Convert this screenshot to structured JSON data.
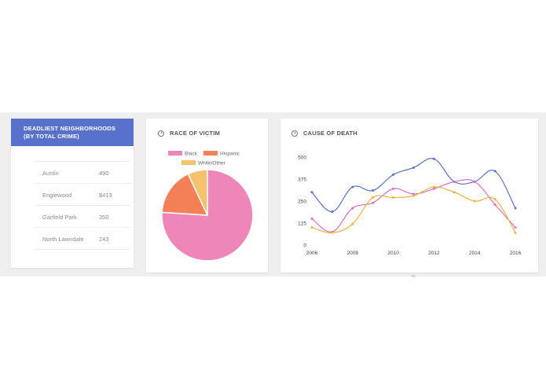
{
  "neighborhoods": {
    "title": "DEADLIEST NEIGHBORHOODS (BY TOTAL CRIME)",
    "rows": [
      {
        "name": "Austin",
        "value": "490"
      },
      {
        "name": "Englewood",
        "value": "$413"
      },
      {
        "name": "Garfield Park",
        "value": "350"
      },
      {
        "name": "North Lawndale",
        "value": "243"
      }
    ]
  },
  "race": {
    "title": "RACE OF VICTIM",
    "icon": "clock-icon",
    "chart_data": {
      "type": "pie",
      "categories": [
        "Black",
        "Hispanic",
        "White/Other"
      ],
      "values": [
        76,
        17,
        7
      ],
      "colors": [
        "#ef86b8",
        "#f38057",
        "#f7c26e"
      ],
      "legend": "top"
    }
  },
  "cause": {
    "title": "CAUSE OF DEATH",
    "icon": "clock-icon",
    "chart_data": {
      "type": "line",
      "x": [
        2006,
        2007,
        2008,
        2009,
        2010,
        2011,
        2012,
        2013,
        2014,
        2015,
        2016
      ],
      "x_ticks": [
        "2006",
        "2008",
        "2010",
        "2012",
        "2014",
        "2016"
      ],
      "ylim": [
        0,
        500
      ],
      "y_ticks": [
        "0",
        "125",
        "250",
        "375",
        "500"
      ],
      "grid": false,
      "series": [
        {
          "color": "#5872cb",
          "values": [
            300,
            190,
            330,
            310,
            400,
            440,
            490,
            360,
            360,
            420,
            210
          ]
        },
        {
          "color": "#d96fc9",
          "values": [
            150,
            75,
            210,
            240,
            320,
            290,
            320,
            360,
            360,
            230,
            100
          ]
        },
        {
          "color": "#f5b13b",
          "values": [
            100,
            70,
            120,
            270,
            270,
            280,
            330,
            300,
            250,
            260,
            70
          ]
        }
      ]
    }
  }
}
